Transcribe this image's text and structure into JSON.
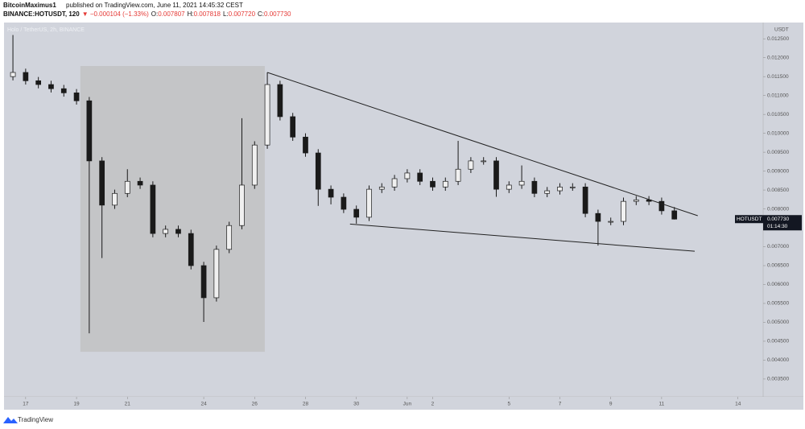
{
  "header": {
    "publisher": "BitcoinMaximus1",
    "published": "published on TradingView.com, June 11, 2021 14:45:32 CEST",
    "symbol": "BINANCE:HOTUSDT, 120",
    "change": "▼ −0.000104 (−1.33%)",
    "ohlc": [
      {
        "label": "O:",
        "value": "0.007807"
      },
      {
        "label": "H:",
        "value": "0.007818"
      },
      {
        "label": "L:",
        "value": "0.007720"
      },
      {
        "label": "C:",
        "value": "0.007730"
      }
    ]
  },
  "footer": {
    "brand": "TradingView"
  },
  "chart_data": {
    "type": "candlestick",
    "legend_text": "Holo / TetherUS, 2h, BINANCE",
    "y_unit": "USDT",
    "candle_color": "#1a1a1a",
    "background": "#d1d4dc",
    "grid": false,
    "xlim": [
      -0.85,
      28.99
    ],
    "ylim": [
      0.00303,
      0.01293
    ],
    "xticks": [
      {
        "value": 0,
        "label": "17"
      },
      {
        "value": 2,
        "label": "19"
      },
      {
        "value": 4,
        "label": "21"
      },
      {
        "value": 7,
        "label": "24"
      },
      {
        "value": 9,
        "label": "26"
      },
      {
        "value": 11,
        "label": "28"
      },
      {
        "value": 13,
        "label": "30"
      },
      {
        "value": 15,
        "label": "Jun"
      },
      {
        "value": 16,
        "label": "2"
      },
      {
        "value": 19,
        "label": "5"
      },
      {
        "value": 21,
        "label": "7"
      },
      {
        "value": 23,
        "label": "9"
      },
      {
        "value": 25,
        "label": "11"
      },
      {
        "value": 28,
        "label": "14"
      }
    ],
    "yticks": [
      {
        "value": 0.0035,
        "label": "0.003500"
      },
      {
        "value": 0.004,
        "label": "0.004000"
      },
      {
        "value": 0.0045,
        "label": "0.004500"
      },
      {
        "value": 0.005,
        "label": "0.005000"
      },
      {
        "value": 0.0055,
        "label": "0.005500"
      },
      {
        "value": 0.006,
        "label": "0.006000"
      },
      {
        "value": 0.0065,
        "label": "0.006500"
      },
      {
        "value": 0.007,
        "label": "0.007000"
      },
      {
        "value": 0.0075,
        "label": "0.007500"
      },
      {
        "value": 0.008,
        "label": "0.008000"
      },
      {
        "value": 0.0085,
        "label": "0.008500"
      },
      {
        "value": 0.009,
        "label": "0.009000"
      },
      {
        "value": 0.0095,
        "label": "0.009500"
      },
      {
        "value": 0.01,
        "label": "0.010000"
      },
      {
        "value": 0.0105,
        "label": "0.010500"
      },
      {
        "value": 0.011,
        "label": "0.011000"
      },
      {
        "value": 0.0115,
        "label": "0.011500"
      },
      {
        "value": 0.012,
        "label": "0.012000"
      },
      {
        "value": 0.0125,
        "label": "0.012500"
      }
    ],
    "x": [
      -0.5,
      0,
      0.5,
      1,
      1.5,
      2,
      2.5,
      3,
      3.5,
      4,
      4.5,
      5,
      5.5,
      6,
      6.5,
      7,
      7.5,
      8,
      8.5,
      9,
      9.5,
      10,
      10.5,
      11,
      11.5,
      12,
      12.5,
      13,
      13.5,
      14,
      14.5,
      15,
      15.5,
      16,
      16.5,
      17,
      17.5,
      18,
      18.5,
      19,
      19.5,
      20,
      20.5,
      21,
      21.5,
      22,
      22.5,
      23,
      23.5,
      24,
      24.5,
      25,
      25.5
    ],
    "open": [
      0.0115,
      0.01161,
      0.01139,
      0.01129,
      0.01118,
      0.01107,
      0.01086,
      0.00927,
      0.0081,
      0.00841,
      0.00873,
      0.00863,
      0.00735,
      0.00746,
      0.00735,
      0.0065,
      0.00565,
      0.00693,
      0.00756,
      0.00863,
      0.00969,
      0.01129,
      0.01044,
      0.0099,
      0.00948,
      0.00852,
      0.00831,
      0.00799,
      0.00778,
      0.00852,
      0.00858,
      0.0088,
      0.00895,
      0.00873,
      0.00858,
      0.00873,
      0.00905,
      0.00927,
      0.00927,
      0.00852,
      0.00863,
      0.00873,
      0.00841,
      0.00848,
      0.00858,
      0.00858,
      0.00788,
      0.00767,
      0.00767,
      0.0082,
      0.00824,
      0.0082,
      0.00795
    ],
    "high": [
      0.0126,
      0.01171,
      0.01149,
      0.01139,
      0.01128,
      0.01117,
      0.01096,
      0.00937,
      0.00851,
      0.00905,
      0.00883,
      0.00873,
      0.00756,
      0.00756,
      0.00745,
      0.0066,
      0.00703,
      0.00766,
      0.0104,
      0.00979,
      0.01161,
      0.01139,
      0.01054,
      0.01,
      0.00958,
      0.00862,
      0.00841,
      0.00809,
      0.00862,
      0.00868,
      0.0089,
      0.00905,
      0.00905,
      0.00883,
      0.00883,
      0.0098,
      0.00937,
      0.00937,
      0.00937,
      0.00873,
      0.00915,
      0.00883,
      0.00858,
      0.00868,
      0.00868,
      0.00868,
      0.00798,
      0.00777,
      0.0083,
      0.00834,
      0.00834,
      0.0083,
      0.00805
    ],
    "low": [
      0.0114,
      0.01129,
      0.01119,
      0.01108,
      0.01097,
      0.01076,
      0.00471,
      0.0067,
      0.008,
      0.00831,
      0.00853,
      0.00725,
      0.00725,
      0.00725,
      0.0064,
      0.00501,
      0.00555,
      0.00683,
      0.00746,
      0.00853,
      0.00959,
      0.01034,
      0.0098,
      0.00938,
      0.00808,
      0.00812,
      0.00789,
      0.00761,
      0.00768,
      0.00842,
      0.00848,
      0.0087,
      0.00863,
      0.00848,
      0.00848,
      0.00863,
      0.00895,
      0.00917,
      0.00832,
      0.00842,
      0.00853,
      0.00831,
      0.00831,
      0.00838,
      0.00848,
      0.00778,
      0.00703,
      0.00757,
      0.00757,
      0.0081,
      0.0081,
      0.00785,
      0.00772
    ],
    "close": [
      0.01161,
      0.01139,
      0.01129,
      0.01118,
      0.01107,
      0.01086,
      0.00927,
      0.0081,
      0.00841,
      0.00873,
      0.00863,
      0.00735,
      0.00746,
      0.00735,
      0.0065,
      0.00565,
      0.00693,
      0.00756,
      0.00863,
      0.00969,
      0.01129,
      0.01044,
      0.0099,
      0.00948,
      0.00852,
      0.00831,
      0.00799,
      0.00778,
      0.00852,
      0.00858,
      0.0088,
      0.00895,
      0.00873,
      0.00858,
      0.00873,
      0.00905,
      0.00927,
      0.00927,
      0.00852,
      0.00863,
      0.00873,
      0.00841,
      0.00848,
      0.00858,
      0.00858,
      0.00788,
      0.00767,
      0.00767,
      0.0082,
      0.00824,
      0.0082,
      0.00795,
      0.00773
    ],
    "highlight_box": {
      "x": [
        2.15,
        9.4
      ],
      "y": [
        0.00422,
        0.01178
      ],
      "color": "#c4c5c7"
    },
    "trendlines": [
      {
        "x": [
          9.5,
          26.42
        ],
        "y": [
          0.01161,
          0.00782
        ]
      },
      {
        "x": [
          12.75,
          26.3
        ],
        "y": [
          0.0076,
          0.00688
        ]
      }
    ],
    "last_price": {
      "symbol": "HOTUSDT",
      "value": 0.00773,
      "label": "0.007730",
      "countdown": "01:14:30"
    }
  }
}
